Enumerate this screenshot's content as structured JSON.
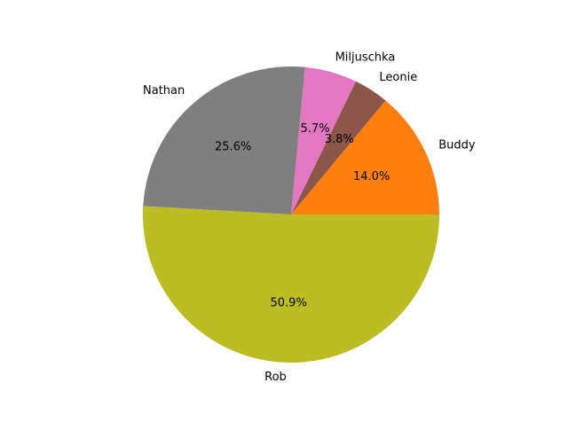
{
  "chart_data": {
    "type": "pie",
    "title": "",
    "start_angle_deg": 0,
    "direction": "counterclockwise",
    "slices": [
      {
        "label": "Buddy",
        "value": 14.0,
        "pct_label": "14.0%",
        "color": "#ff7f0e"
      },
      {
        "label": "Leonie",
        "value": 3.8,
        "pct_label": "3.8%",
        "color": "#8c564b"
      },
      {
        "label": "Miljuschka",
        "value": 5.7,
        "pct_label": "5.7%",
        "color": "#e377c2"
      },
      {
        "label": "Nathan",
        "value": 25.6,
        "pct_label": "25.6%",
        "color": "#7f7f7f"
      },
      {
        "label": "Rob",
        "value": 50.9,
        "pct_label": "50.9%",
        "color": "#bcbd22"
      }
    ]
  }
}
